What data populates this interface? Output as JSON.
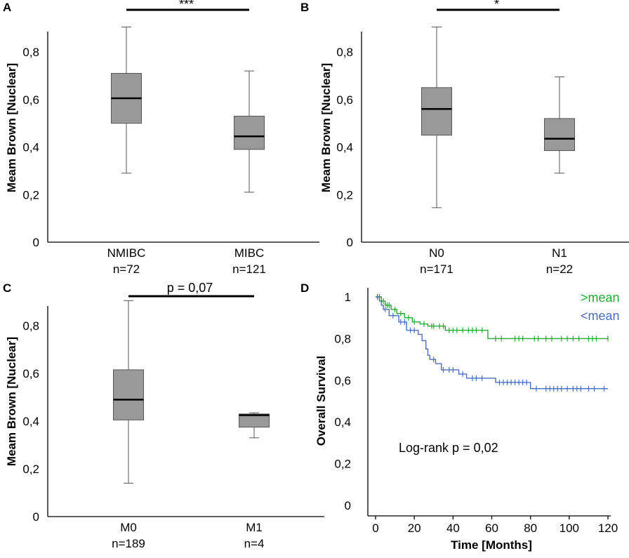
{
  "chart_data": [
    {
      "type": "box",
      "panel": "A",
      "ylabel": "Meam Brown [Nuclear]",
      "ylim": [
        0,
        0.95
      ],
      "yticks": [
        "0",
        "0,2",
        "0,4",
        "0,6",
        "0,8"
      ],
      "significance": "***",
      "categories": [
        {
          "name": "NMIBC",
          "n": "n=72",
          "min": 0.29,
          "q1": 0.5,
          "median": 0.605,
          "q3": 0.71,
          "max": 0.905
        },
        {
          "name": "MIBC",
          "n": "n=121",
          "min": 0.21,
          "q1": 0.39,
          "median": 0.445,
          "q3": 0.53,
          "max": 0.72
        }
      ]
    },
    {
      "type": "box",
      "panel": "B",
      "ylabel": "Meam Brown [Nuclear]",
      "ylim": [
        0,
        0.95
      ],
      "yticks": [
        "0",
        "0,2",
        "0,4",
        "0,6",
        "0,8"
      ],
      "significance": "*",
      "categories": [
        {
          "name": "N0",
          "n": "n=171",
          "min": 0.145,
          "q1": 0.45,
          "median": 0.56,
          "q3": 0.65,
          "max": 0.905
        },
        {
          "name": "N1",
          "n": "n=22",
          "min": 0.29,
          "q1": 0.385,
          "median": 0.435,
          "q3": 0.52,
          "max": 0.695
        }
      ]
    },
    {
      "type": "box",
      "panel": "C",
      "ylabel": "Meam Brown [Nuclear]",
      "ylim": [
        0,
        0.95
      ],
      "yticks": [
        "0",
        "0,2",
        "0,4",
        "0,6",
        "0,8"
      ],
      "significance": "p = 0,07",
      "categories": [
        {
          "name": "M0",
          "n": "n=189",
          "min": 0.14,
          "q1": 0.405,
          "median": 0.49,
          "q3": 0.615,
          "max": 0.905
        },
        {
          "name": "M1",
          "n": "n=4",
          "min": 0.33,
          "q1": 0.375,
          "median": 0.425,
          "q3": 0.43,
          "max": 0.435
        }
      ]
    },
    {
      "type": "line",
      "subtype": "kaplan-meier",
      "panel": "D",
      "xlabel": "Time [Months]",
      "ylabel": "Overall Survival",
      "xlim": [
        0,
        120
      ],
      "ylim": [
        0,
        1
      ],
      "xticks": [
        "0",
        "20",
        "40",
        "60",
        "80",
        "100",
        "120"
      ],
      "yticks": [
        "0",
        "0,2",
        "0,4",
        "0,6",
        "0,8",
        "1"
      ],
      "annotation": "Log-rank p = 0,02",
      "series": [
        {
          "name": ">mean",
          "color": "#22aa33",
          "steps": [
            [
              0,
              1
            ],
            [
              3,
              0.98
            ],
            [
              5,
              0.96
            ],
            [
              8,
              0.94
            ],
            [
              11,
              0.92
            ],
            [
              15,
              0.9
            ],
            [
              19,
              0.88
            ],
            [
              23,
              0.87
            ],
            [
              27,
              0.86
            ],
            [
              36,
              0.84
            ],
            [
              58,
              0.8
            ],
            [
              120,
              0.8
            ]
          ],
          "censor_x": [
            1,
            2,
            4,
            6,
            7,
            10,
            13,
            17,
            20,
            25,
            29,
            30,
            33,
            35,
            38,
            40,
            42,
            45,
            48,
            50,
            52,
            55,
            62,
            65,
            72,
            74,
            76,
            82,
            84,
            88,
            91,
            96,
            99,
            102,
            105,
            110,
            112,
            114,
            120
          ]
        },
        {
          "name": "<mean",
          "color": "#4a6fc0",
          "steps": [
            [
              0,
              1
            ],
            [
              2,
              0.98
            ],
            [
              3,
              0.96
            ],
            [
              4,
              0.94
            ],
            [
              7,
              0.91
            ],
            [
              12,
              0.88
            ],
            [
              16,
              0.84
            ],
            [
              22,
              0.82
            ],
            [
              24,
              0.79
            ],
            [
              26,
              0.75
            ],
            [
              27,
              0.72
            ],
            [
              28,
              0.7
            ],
            [
              31,
              0.68
            ],
            [
              34,
              0.65
            ],
            [
              43,
              0.63
            ],
            [
              47,
              0.61
            ],
            [
              62,
              0.59
            ],
            [
              80,
              0.56
            ],
            [
              120,
              0.56
            ]
          ],
          "censor_x": [
            1,
            5,
            9,
            13,
            15,
            18,
            20,
            30,
            35,
            38,
            40,
            45,
            50,
            52,
            55,
            64,
            66,
            68,
            70,
            72,
            74,
            76,
            78,
            83,
            88,
            90,
            92,
            94,
            96,
            99,
            102,
            104,
            106,
            110,
            113,
            118
          ]
        }
      ]
    }
  ]
}
